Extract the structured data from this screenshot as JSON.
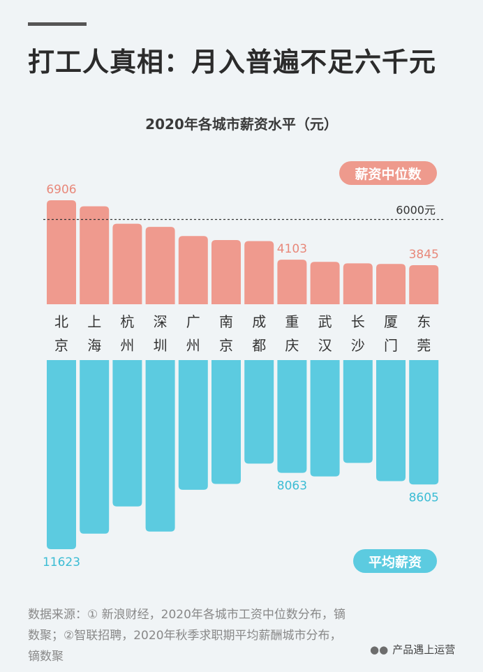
{
  "headline": "打工人真相：月入普遍不足六千元",
  "chart_data": {
    "type": "bar",
    "title": "2020年各城市薪资水平（元）",
    "categories": [
      "北京",
      "上海",
      "杭州",
      "深圳",
      "广州",
      "南京",
      "成都",
      "重庆",
      "武汉",
      "长沙",
      "厦门",
      "东莞"
    ],
    "series": [
      {
        "name": "薪资中位数",
        "color": "#ef9a8e",
        "values": [
          6906,
          6620,
          5800,
          5650,
          5220,
          5030,
          4980,
          4103,
          4000,
          3930,
          3900,
          3845
        ],
        "labeled": {
          "北京": "6906",
          "重庆": "4103",
          "东莞": "3845"
        }
      },
      {
        "name": "平均薪资",
        "color": "#5ccbe0",
        "values": [
          11623,
          10900,
          9630,
          10800,
          8850,
          8580,
          7630,
          8063,
          8230,
          7600,
          8450,
          8605
        ],
        "labeled": {
          "北京": "11623",
          "重庆": "8063",
          "东莞": "8605"
        }
      }
    ],
    "reference_line": {
      "value": 6000,
      "label": "6000元",
      "series": "薪资中位数",
      "style": "dashed"
    },
    "ylim_median": [
      2000,
      7200
    ],
    "ylim_mean": [
      2800,
      12000
    ],
    "legend": [
      "薪资中位数",
      "平均薪资"
    ]
  },
  "source_lines": [
    "数据来源：① 新浪财经，2020年各城市工资中位数分布，镝",
    "数聚；②智联招聘，2020年秋季求职期平均薪酬城市分布，",
    "镝数聚"
  ],
  "watermark": {
    "icon": "wechat-icon",
    "text": "产品遇上运营"
  }
}
